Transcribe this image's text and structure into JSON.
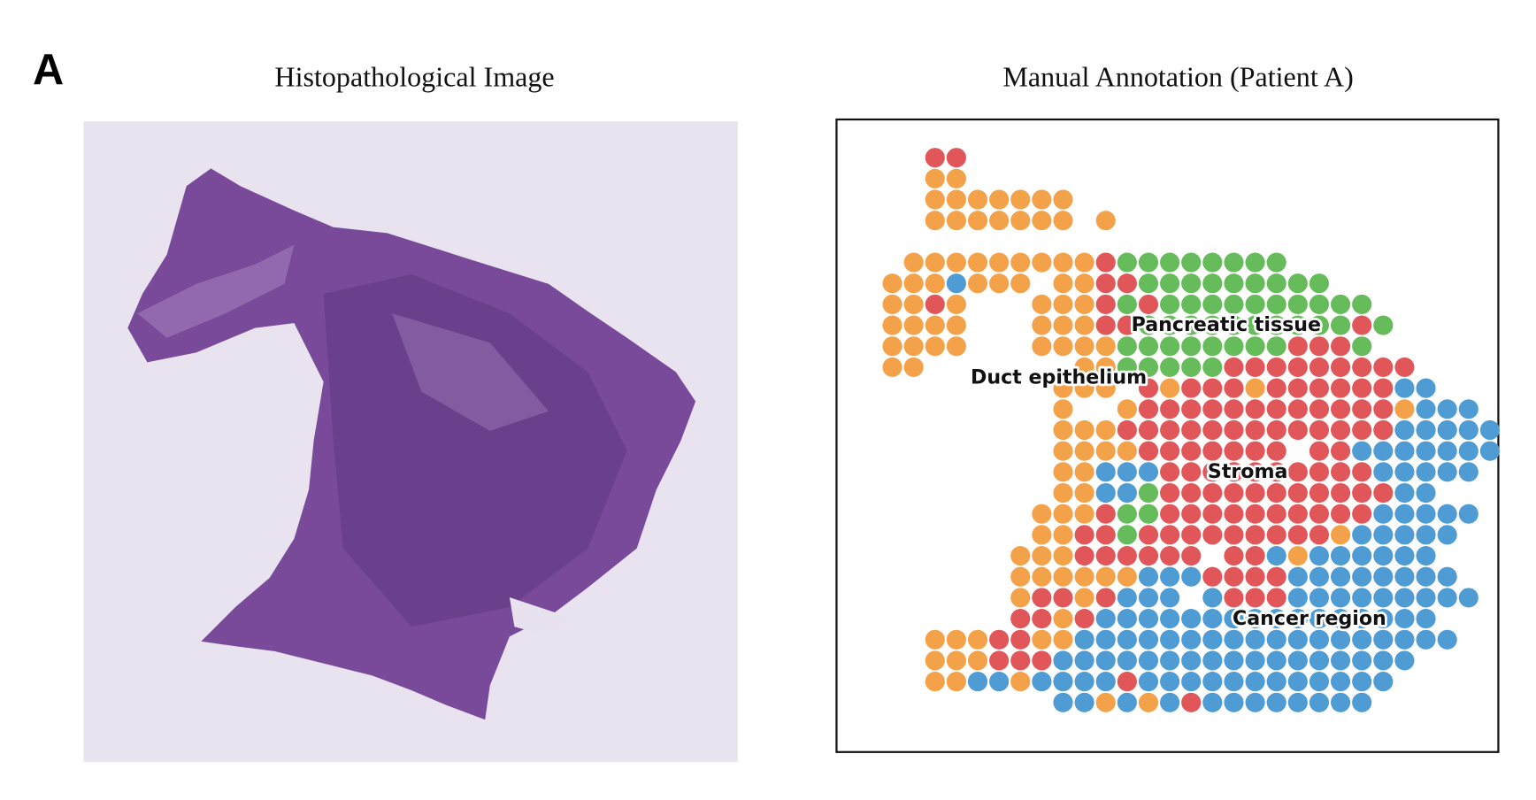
{
  "panel_label": "A",
  "left_panel": {
    "title": "Histopathological Image"
  },
  "right_panel": {
    "title": "Manual Annotation (Patient A)",
    "regions": [
      "Pancreatic tissue",
      "Duct epithelium",
      "Stroma",
      "Cancer region"
    ]
  }
}
